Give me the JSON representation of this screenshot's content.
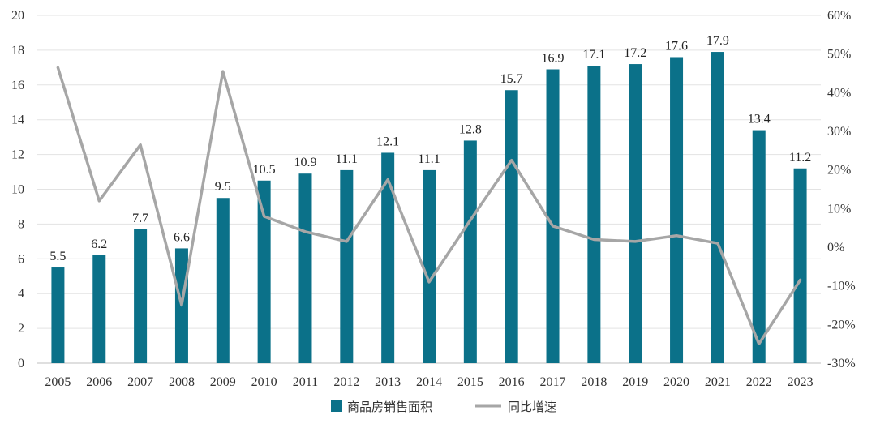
{
  "chart_data": {
    "type": "bar",
    "categories": [
      "2005",
      "2006",
      "2007",
      "2008",
      "2009",
      "2010",
      "2011",
      "2012",
      "2013",
      "2014",
      "2015",
      "2016",
      "2017",
      "2018",
      "2019",
      "2020",
      "2021",
      "2022",
      "2023"
    ],
    "series": [
      {
        "name": "商品房销售面积",
        "kind": "bar",
        "axis": "left",
        "color": "#0b7189",
        "values": [
          5.5,
          6.2,
          7.7,
          6.6,
          9.5,
          10.5,
          10.9,
          11.1,
          12.1,
          11.1,
          12.8,
          15.7,
          16.9,
          17.1,
          17.2,
          17.6,
          17.9,
          13.4,
          11.2
        ],
        "labels": [
          "5.5",
          "6.2",
          "7.7",
          "6.6",
          "9.5",
          "10.5",
          "10.9",
          "11.1",
          "12.1",
          "11.1",
          "12.8",
          "15.7",
          "16.9",
          "17.1",
          "17.2",
          "17.6",
          "17.9",
          "13.4",
          "11.2"
        ]
      },
      {
        "name": "同比增速",
        "kind": "line",
        "axis": "right",
        "color": "#a6a6a6",
        "values": [
          46.5,
          12.0,
          26.5,
          -15.0,
          45.5,
          8.0,
          4.0,
          1.5,
          17.5,
          -9.0,
          7.0,
          22.5,
          5.5,
          2.0,
          1.5,
          3.0,
          1.0,
          -25.0,
          -8.5
        ]
      }
    ],
    "y_left": {
      "min": 0,
      "max": 20,
      "ticks": [
        "0",
        "2",
        "4",
        "6",
        "8",
        "10",
        "12",
        "14",
        "16",
        "18",
        "20"
      ]
    },
    "y_right": {
      "min": -30,
      "max": 60,
      "ticks": [
        "-30%",
        "-20%",
        "-10%",
        "0%",
        "10%",
        "20%",
        "30%",
        "40%",
        "50%",
        "60%"
      ]
    },
    "legend": {
      "placement": "bottom-center",
      "items": [
        "商品房销售面积",
        "同比增速"
      ]
    },
    "grid": true,
    "title": "",
    "xlabel": "",
    "ylabel": ""
  }
}
